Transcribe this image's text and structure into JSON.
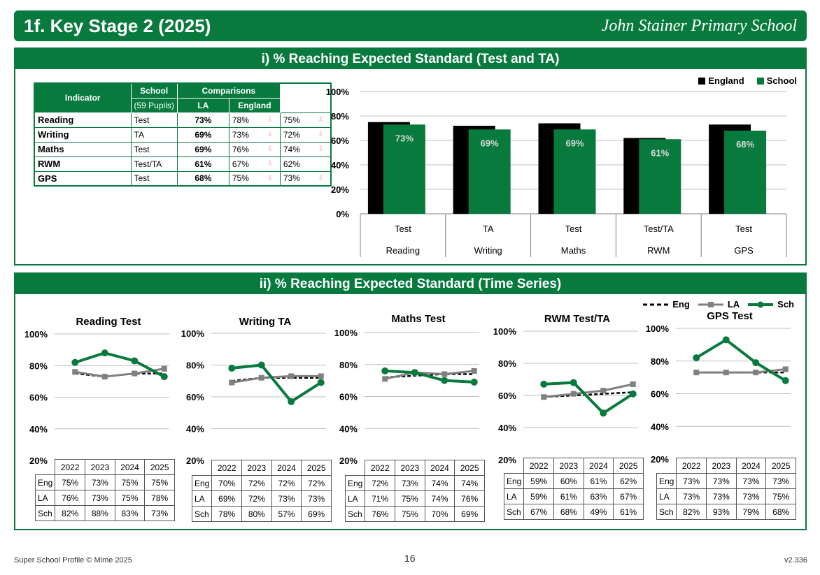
{
  "header": {
    "title": "1f. Key Stage 2 (2025)",
    "school": "John Stainer Primary School"
  },
  "section1": {
    "heading": "i) % Reaching Expected Standard (Test and TA)",
    "table": {
      "col_indicator": "Indicator",
      "col_school": "School",
      "col_pupils": "(59 Pupils)",
      "col_comparisons": "Comparisons",
      "col_la": "LA",
      "col_england": "England",
      "rows": [
        {
          "name": "Reading",
          "type": "Test",
          "school": "73%",
          "la": "78%",
          "england": "75%",
          "la_down": true,
          "eng_down": true
        },
        {
          "name": "Writing",
          "type": "TA",
          "school": "69%",
          "la": "73%",
          "england": "72%",
          "la_down": true,
          "eng_down": true
        },
        {
          "name": "Maths",
          "type": "Test",
          "school": "69%",
          "la": "76%",
          "england": "74%",
          "la_down": true,
          "eng_down": true
        },
        {
          "name": "RWM",
          "type": "Test/TA",
          "school": "61%",
          "la": "67%",
          "england": "62%",
          "la_down": true,
          "eng_down": false
        },
        {
          "name": "GPS",
          "type": "Test",
          "school": "68%",
          "la": "75%",
          "england": "73%",
          "la_down": true,
          "eng_down": true
        }
      ],
      "down_arrow": "⇩"
    },
    "legend": {
      "england": "England",
      "school": "School"
    }
  },
  "chart_data": [
    {
      "type": "bar",
      "categories": [
        [
          "Test",
          "Reading"
        ],
        [
          "TA",
          "Writing"
        ],
        [
          "Test",
          "Maths"
        ],
        [
          "Test/TA",
          "RWM"
        ],
        [
          "Test",
          "GPS"
        ]
      ],
      "series": [
        {
          "name": "England",
          "values": [
            75,
            72,
            74,
            62,
            73
          ],
          "color": "#000000"
        },
        {
          "name": "School",
          "values": [
            73,
            69,
            69,
            61,
            68
          ],
          "color": "#087a3e"
        }
      ],
      "data_labels": [
        "73%",
        "69%",
        "69%",
        "61%",
        "68%"
      ],
      "ylim": [
        0,
        100
      ],
      "yticks": [
        "0%",
        "20%",
        "40%",
        "60%",
        "80%",
        "100%"
      ],
      "grid": true,
      "legend": "top-right"
    },
    {
      "type": "line",
      "title": "Reading Test",
      "x": [
        "2022",
        "2023",
        "2024",
        "2025"
      ],
      "series": [
        {
          "name": "Eng",
          "values": [
            75,
            73,
            75,
            75
          ]
        },
        {
          "name": "LA",
          "values": [
            76,
            73,
            75,
            78
          ]
        },
        {
          "name": "Sch",
          "values": [
            82,
            88,
            83,
            73
          ]
        }
      ],
      "ylim": [
        20,
        100
      ]
    },
    {
      "type": "line",
      "title": "Writing TA",
      "x": [
        "2022",
        "2023",
        "2024",
        "2025"
      ],
      "series": [
        {
          "name": "Eng",
          "values": [
            70,
            72,
            72,
            72
          ]
        },
        {
          "name": "LA",
          "values": [
            69,
            72,
            73,
            73
          ]
        },
        {
          "name": "Sch",
          "values": [
            78,
            80,
            57,
            69
          ]
        }
      ],
      "ylim": [
        20,
        100
      ]
    },
    {
      "type": "line",
      "title": "Maths Test",
      "x": [
        "2022",
        "2023",
        "2024",
        "2025"
      ],
      "series": [
        {
          "name": "Eng",
          "values": [
            72,
            73,
            74,
            74
          ]
        },
        {
          "name": "LA",
          "values": [
            71,
            75,
            74,
            76
          ]
        },
        {
          "name": "Sch",
          "values": [
            76,
            75,
            70,
            69
          ]
        }
      ],
      "ylim": [
        20,
        100
      ]
    },
    {
      "type": "line",
      "title": "RWM Test/TA",
      "x": [
        "2022",
        "2023",
        "2024",
        "2025"
      ],
      "series": [
        {
          "name": "Eng",
          "values": [
            59,
            60,
            61,
            62
          ]
        },
        {
          "name": "LA",
          "values": [
            59,
            61,
            63,
            67
          ]
        },
        {
          "name": "Sch",
          "values": [
            67,
            68,
            49,
            61
          ]
        }
      ],
      "ylim": [
        20,
        100
      ]
    },
    {
      "type": "line",
      "title": "GPS Test",
      "x": [
        "2022",
        "2023",
        "2024",
        "2025"
      ],
      "series": [
        {
          "name": "Eng",
          "values": [
            73,
            73,
            73,
            73
          ]
        },
        {
          "name": "LA",
          "values": [
            73,
            73,
            73,
            75
          ]
        },
        {
          "name": "Sch",
          "values": [
            82,
            93,
            79,
            68
          ]
        }
      ],
      "ylim": [
        20,
        100
      ]
    }
  ],
  "section2": {
    "heading": "ii) % Reaching Expected Standard (Time Series)",
    "legend": {
      "eng": "Eng",
      "la": "LA",
      "sch": "Sch"
    },
    "yticks": [
      "20%",
      "40%",
      "60%",
      "80%",
      "100%"
    ],
    "colors": {
      "eng": "#000000",
      "la": "#808080",
      "sch": "#087a3e"
    },
    "tables": [
      {
        "years": [
          "2022",
          "2023",
          "2024",
          "2025"
        ],
        "rows": [
          {
            "label": "Eng",
            "values": [
              "75%",
              "73%",
              "75%",
              "75%"
            ]
          },
          {
            "label": "LA",
            "values": [
              "76%",
              "73%",
              "75%",
              "78%"
            ]
          },
          {
            "label": "Sch",
            "values": [
              "82%",
              "88%",
              "83%",
              "73%"
            ]
          }
        ]
      },
      {
        "years": [
          "2022",
          "2023",
          "2024",
          "2025"
        ],
        "rows": [
          {
            "label": "Eng",
            "values": [
              "70%",
              "72%",
              "72%",
              "72%"
            ]
          },
          {
            "label": "LA",
            "values": [
              "69%",
              "72%",
              "73%",
              "73%"
            ]
          },
          {
            "label": "Sch",
            "values": [
              "78%",
              "80%",
              "57%",
              "69%"
            ]
          }
        ]
      },
      {
        "years": [
          "2022",
          "2023",
          "2024",
          "2025"
        ],
        "rows": [
          {
            "label": "Eng",
            "values": [
              "72%",
              "73%",
              "74%",
              "74%"
            ]
          },
          {
            "label": "LA",
            "values": [
              "71%",
              "75%",
              "74%",
              "76%"
            ]
          },
          {
            "label": "Sch",
            "values": [
              "76%",
              "75%",
              "70%",
              "69%"
            ]
          }
        ]
      },
      {
        "years": [
          "2022",
          "2023",
          "2024",
          "2025"
        ],
        "rows": [
          {
            "label": "Eng",
            "values": [
              "59%",
              "60%",
              "61%",
              "62%"
            ]
          },
          {
            "label": "LA",
            "values": [
              "59%",
              "61%",
              "63%",
              "67%"
            ]
          },
          {
            "label": "Sch",
            "values": [
              "67%",
              "68%",
              "49%",
              "61%"
            ]
          }
        ]
      },
      {
        "years": [
          "2022",
          "2023",
          "2024",
          "2025"
        ],
        "rows": [
          {
            "label": "Eng",
            "values": [
              "73%",
              "73%",
              "73%",
              "73%"
            ]
          },
          {
            "label": "LA",
            "values": [
              "73%",
              "73%",
              "73%",
              "75%"
            ]
          },
          {
            "label": "Sch",
            "values": [
              "82%",
              "93%",
              "79%",
              "68%"
            ]
          }
        ]
      }
    ]
  },
  "footer": {
    "left": "Super School Profile © Mime 2025",
    "page": "16",
    "version": "v2.336"
  }
}
